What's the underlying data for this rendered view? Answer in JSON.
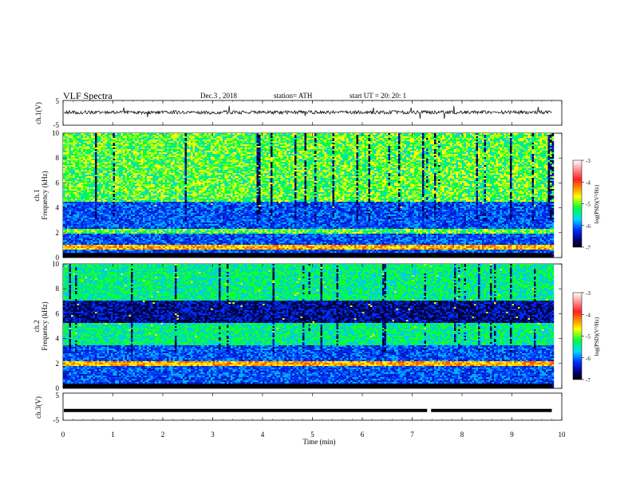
{
  "header": {
    "title": "VLF  Spectra",
    "date": "Dec.3  , 2018",
    "station": "station= ATH",
    "start": "start  UT  =    20: 20: 1"
  },
  "colorbar": {
    "label": "log(PSD)(V²/Hz)",
    "ticks": [
      -3,
      -4,
      -5,
      -6,
      -7
    ],
    "colors": [
      "#ffffff",
      "#ff2020",
      "#ff9a00",
      "#ffff00",
      "#00ff40",
      "#00d8ff",
      "#0030ff",
      "#000070",
      "#000000"
    ]
  },
  "chart_data": [
    {
      "type": "line",
      "name": "ch1-waveform",
      "ylabel": "ch.1(V)",
      "ylim": [
        -5,
        5
      ],
      "yticks": [
        5,
        -5
      ],
      "xlim": [
        0,
        10
      ],
      "baseline_v": 0.2,
      "amplitude_v": 0.7,
      "spikes_v": 3.0
    },
    {
      "type": "heatmap",
      "name": "ch1-spectrogram",
      "ylabel": "ch.1\nFrequency  (kHz)",
      "ylim": [
        0,
        10
      ],
      "yticks": [
        0,
        2,
        4,
        6,
        8,
        10
      ],
      "xlim": [
        0,
        10
      ],
      "data_end_min": 9.8,
      "bands_khz": [
        {
          "f": [
            0.6,
            1.0
          ],
          "level": "orange"
        },
        {
          "f": [
            1.9,
            2.3
          ],
          "level": "green-yellow"
        },
        {
          "f": [
            2.6,
            3.2
          ],
          "level": "blue"
        },
        {
          "f": [
            4.5,
            10
          ],
          "level": "green-yellow"
        }
      ]
    },
    {
      "type": "heatmap",
      "name": "ch2-spectrogram",
      "ylabel": "ch.2\nFrequency  (kHz)",
      "ylim": [
        0,
        10
      ],
      "yticks": [
        0,
        2,
        4,
        6,
        8,
        10
      ],
      "xlim": [
        0,
        10
      ],
      "data_end_min": 9.8,
      "bands_khz": [
        {
          "f": [
            1.8,
            2.2
          ],
          "level": "orange"
        },
        {
          "f": [
            2.3,
            2.8
          ],
          "level": "blue"
        },
        {
          "f": [
            3.5,
            5.3
          ],
          "level": "green"
        },
        {
          "f": [
            5.3,
            7.0
          ],
          "level": "dark-blue"
        },
        {
          "f": [
            7.0,
            10
          ],
          "level": "green"
        }
      ]
    },
    {
      "type": "line",
      "name": "ch3-waveform",
      "ylabel": "ch.3(V)",
      "ylim": [
        -5,
        5
      ],
      "yticks": [
        5,
        -5
      ],
      "xlim": [
        0,
        10
      ],
      "level_v": -1.4,
      "gap_min": 7.3
    }
  ],
  "xaxis": {
    "label": "Time  (min)",
    "ticks": [
      0,
      1,
      2,
      3,
      4,
      5,
      6,
      7,
      8,
      9,
      10
    ]
  }
}
